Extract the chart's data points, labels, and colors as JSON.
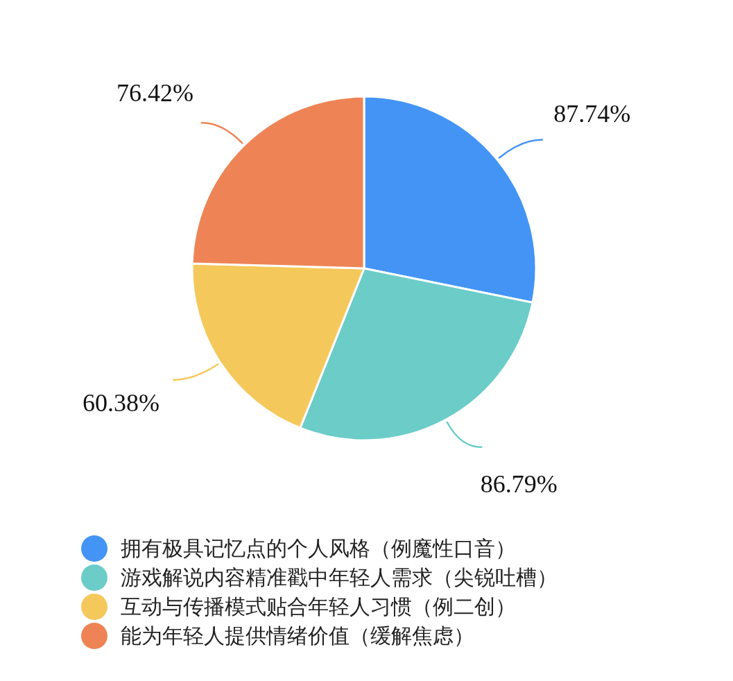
{
  "chart_data": {
    "type": "pie",
    "categories": [
      "拥有极具记忆点的个人风格（例魔性口音）",
      "游戏解说内容精准戳中年轻人需求（尖锐吐槽）",
      "互动与传播模式贴合年轻人习惯（例二创）",
      "能为年轻人提供情绪价值（缓解焦虑）"
    ],
    "values": [
      87.74,
      86.79,
      60.38,
      76.42
    ],
    "value_labels": [
      "87.74%",
      "86.79%",
      "60.38%",
      "76.42%"
    ],
    "colors": [
      "#4394f5",
      "#6bccc8",
      "#f5c85b",
      "#ee8455"
    ],
    "legend": "bottom"
  }
}
